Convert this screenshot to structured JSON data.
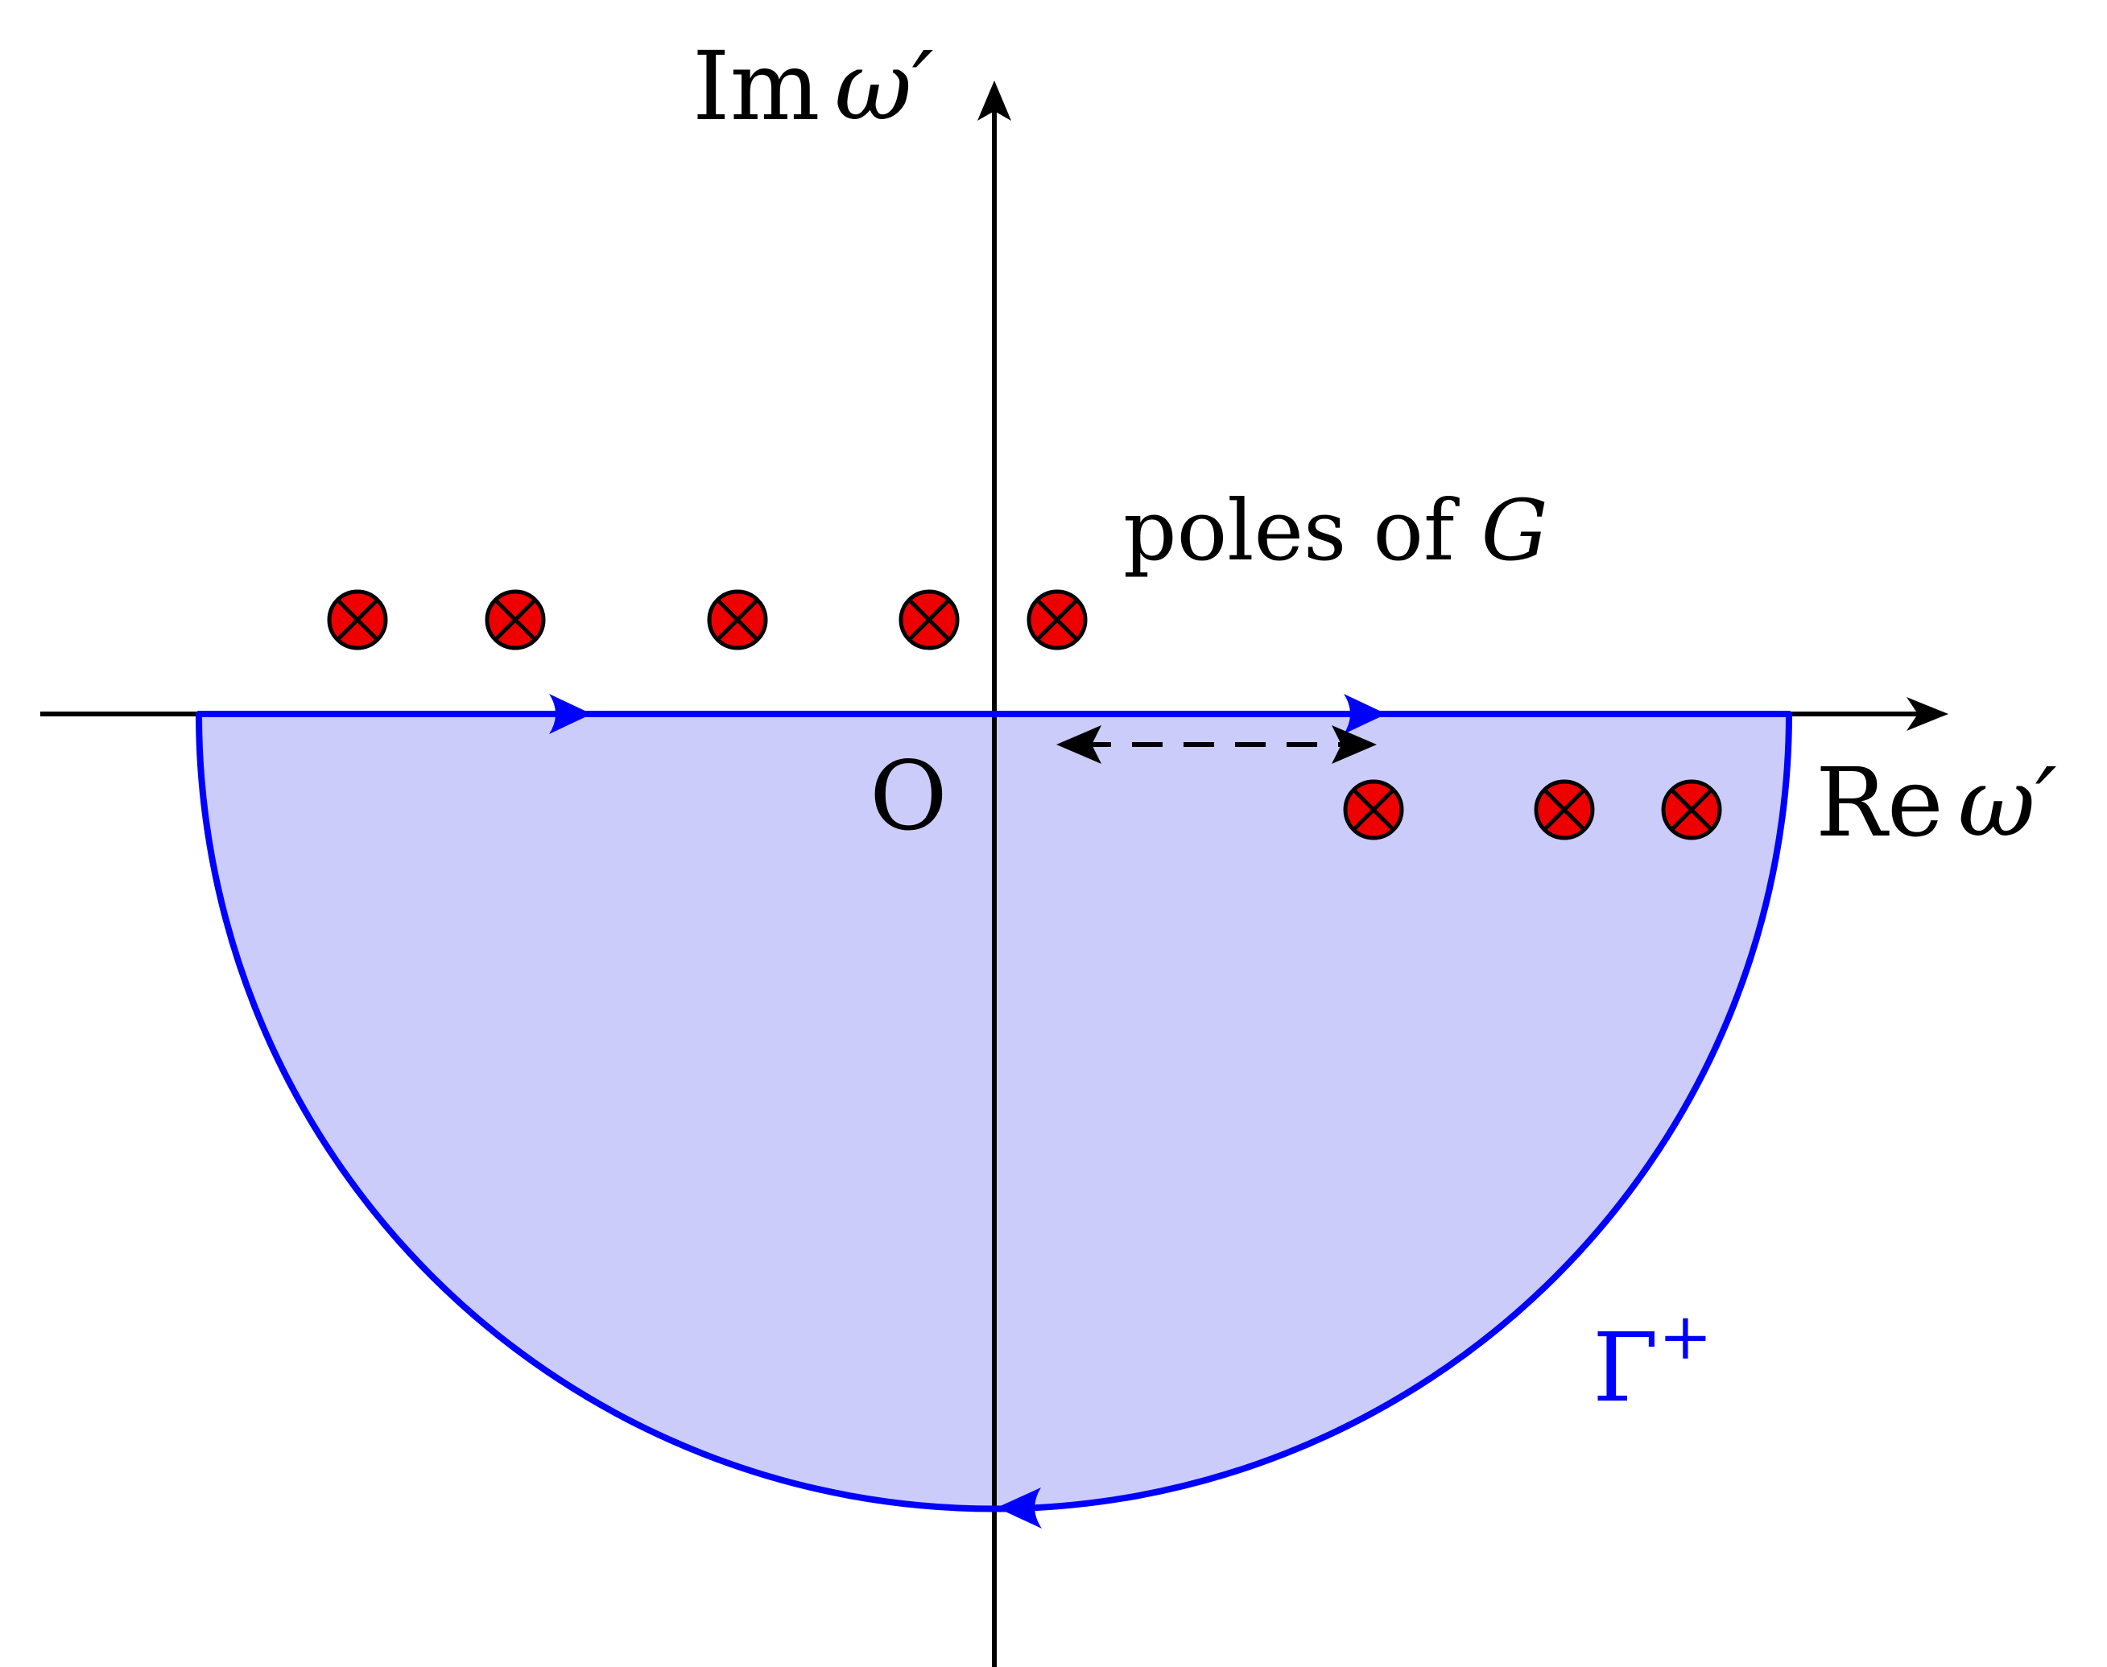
{
  "labels": {
    "imag_axis_re": "Im",
    "imag_axis_var": "ω′",
    "real_axis_re": "Re",
    "real_axis_var": "ω′",
    "origin": "O",
    "poles_text": "poles of ",
    "poles_var": "G",
    "contour_name": "Γ",
    "contour_sup": "+"
  },
  "colors": {
    "axis": "#000000",
    "contour": "#0000ff",
    "fill": "#ccccfa",
    "pole_fill": "#ee0000",
    "pole_stroke": "#000000",
    "contour_label": "#0000ff"
  },
  "icons": {
    "pole_marker": "circled-times-icon"
  }
}
